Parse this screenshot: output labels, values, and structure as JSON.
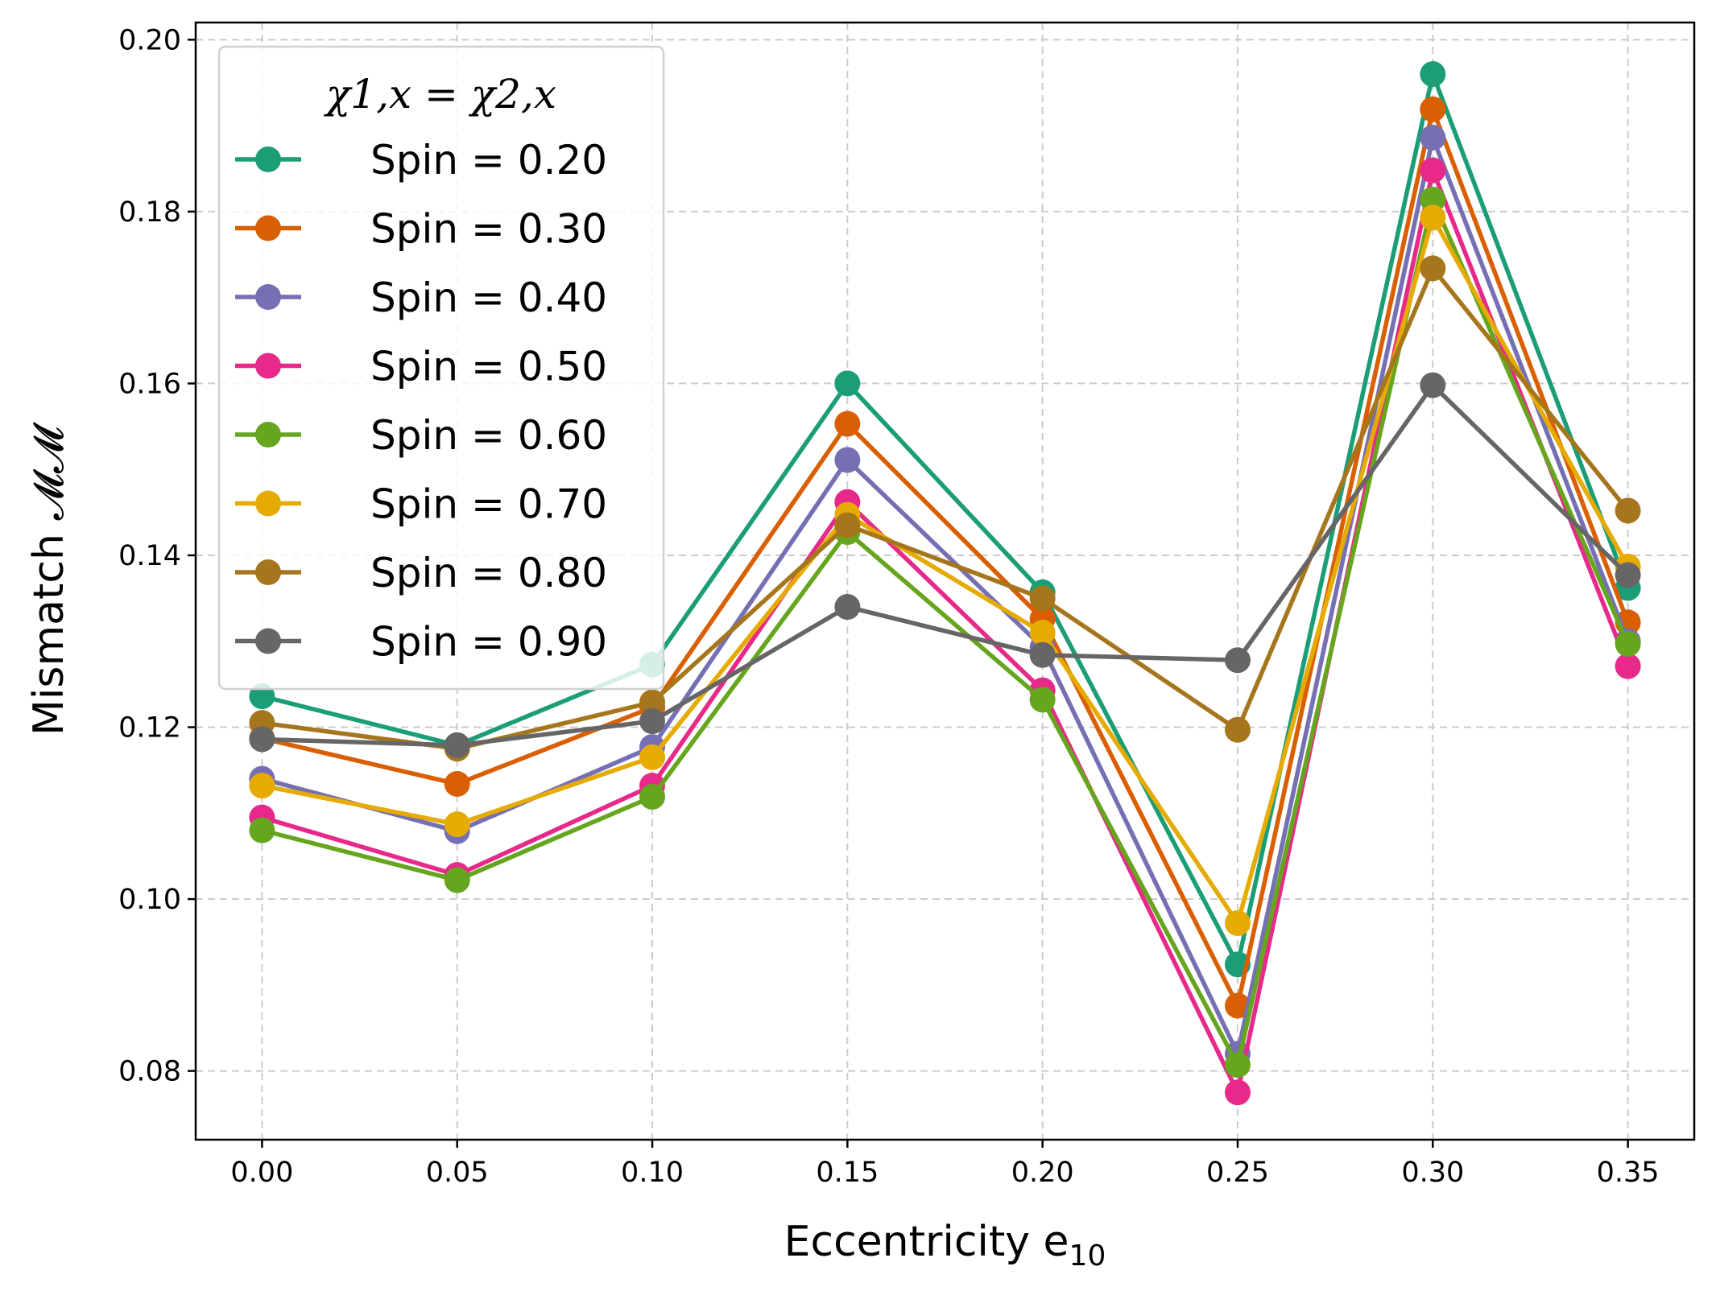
{
  "chart_data": {
    "type": "line",
    "title": "",
    "xlabel": "Eccentricity e",
    "xlabel_sub": "10",
    "ylabel": "Mismatch 𝓜𝓜",
    "x": [
      0.0,
      0.05,
      0.1,
      0.15,
      0.2,
      0.25,
      0.3,
      0.35
    ],
    "x_tick_labels": [
      "0.00",
      "0.05",
      "0.10",
      "0.15",
      "0.20",
      "0.25",
      "0.30",
      "0.35"
    ],
    "y_ticks": [
      0.08,
      0.1,
      0.12,
      0.14,
      0.16,
      0.18,
      0.2
    ],
    "y_tick_labels": [
      "0.08",
      "0.10",
      "0.12",
      "0.14",
      "0.16",
      "0.18",
      "0.20"
    ],
    "xlim": [
      -0.017,
      0.367
    ],
    "ylim": [
      0.072,
      0.202
    ],
    "grid": true,
    "legend": {
      "title": "χ1,x = χ2,x",
      "placement": "top-left"
    },
    "series": [
      {
        "name": "Spin = 0.20",
        "color": "#1b9e77",
        "values": [
          0.1236,
          0.1179,
          0.1273,
          0.16,
          0.1357,
          0.0924,
          0.196,
          0.1362
        ]
      },
      {
        "name": "Spin = 0.30",
        "color": "#d95f02",
        "values": [
          0.1187,
          0.1134,
          0.1223,
          0.1553,
          0.1326,
          0.0876,
          0.1919,
          0.1322
        ]
      },
      {
        "name": "Spin = 0.40",
        "color": "#7570b3",
        "values": [
          0.114,
          0.1079,
          0.1177,
          0.1511,
          0.1293,
          0.082,
          0.1886,
          0.13
        ]
      },
      {
        "name": "Spin = 0.50",
        "color": "#e7298a",
        "values": [
          0.1095,
          0.1028,
          0.1132,
          0.1462,
          0.1243,
          0.0775,
          0.1848,
          0.1271
        ]
      },
      {
        "name": "Spin = 0.60",
        "color": "#66a61e",
        "values": [
          0.108,
          0.1022,
          0.1119,
          0.1427,
          0.1232,
          0.0807,
          0.1814,
          0.1297
        ]
      },
      {
        "name": "Spin = 0.70",
        "color": "#e6ab02",
        "values": [
          0.1132,
          0.1087,
          0.1165,
          0.1447,
          0.131,
          0.0972,
          0.1793,
          0.1387
        ]
      },
      {
        "name": "Spin = 0.80",
        "color": "#a6761d",
        "values": [
          0.1205,
          0.1175,
          0.1229,
          0.1435,
          0.135,
          0.1197,
          0.1734,
          0.1452
        ]
      },
      {
        "name": "Spin = 0.90",
        "color": "#666666",
        "values": [
          0.1186,
          0.1179,
          0.1207,
          0.134,
          0.1284,
          0.1278,
          0.1598,
          0.1377
        ]
      }
    ]
  }
}
